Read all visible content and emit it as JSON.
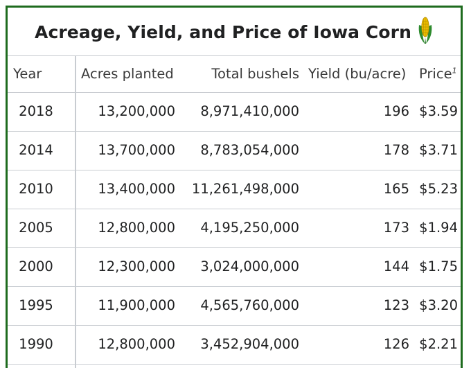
{
  "table": {
    "caption": "Acreage, Yield, and Price of Iowa Corn",
    "caption_icon": "corn-icon",
    "headers": {
      "year": "Year",
      "acres": "Acres planted",
      "bushels": "Total bushels",
      "yield": "Yield (bu/acre)",
      "price": "Price",
      "price_note": "1"
    },
    "rows": [
      {
        "year": "2018",
        "acres": "13,200,000",
        "bushels": "8,971,410,000",
        "yield": "196",
        "price": "$3.59"
      },
      {
        "year": "2014",
        "acres": "13,700,000",
        "bushels": "8,783,054,000",
        "yield": "178",
        "price": "$3.71"
      },
      {
        "year": "2010",
        "acres": "13,400,000",
        "bushels": "11,261,498,000",
        "yield": "165",
        "price": "$5.23"
      },
      {
        "year": "2005",
        "acres": "12,800,000",
        "bushels": "4,195,250,000",
        "yield": "173",
        "price": "$1.94"
      },
      {
        "year": "2000",
        "acres": "12,300,000",
        "bushels": "3,024,000,000",
        "yield": "144",
        "price": "$1.75"
      },
      {
        "year": "1995",
        "acres": "11,900,000",
        "bushels": "4,565,760,000",
        "yield": "123",
        "price": "$3.20"
      },
      {
        "year": "1990",
        "acres": "12,800,000",
        "bushels": "3,452,904,000",
        "yield": "126",
        "price": "$2.21"
      }
    ],
    "colors": {
      "frame": "#1e6b1e",
      "grid": "#c8ccd1",
      "corn_kernel": "#f2c200",
      "corn_husk": "#2e8b2e"
    }
  }
}
